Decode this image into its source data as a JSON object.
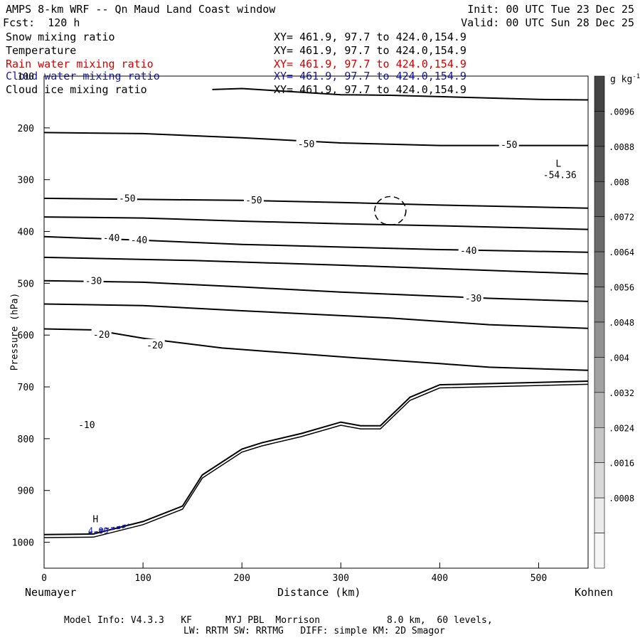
{
  "header": {
    "title": "AMPS 8-km WRF -- Qn Maud Land Coast window",
    "forecast": "Fcst:  120 h",
    "init": "Init: 00 UTC Tue 23 Dec 25",
    "valid": "Valid: 00 UTC Sun 28 Dec 25"
  },
  "fields": [
    {
      "name": "Snow mixing ratio",
      "xy": "XY= 461.9, 97.7 to 424.0,154.9",
      "color": "#000000"
    },
    {
      "name": "Temperature",
      "xy": "XY= 461.9, 97.7 to 424.0,154.9",
      "color": "#000000"
    },
    {
      "name": "Rain water mixing ratio",
      "xy": "XY= 461.9, 97.7 to 424.0,154.9",
      "color": "#d40000"
    },
    {
      "name": "Cloud water mixing ratio",
      "xy": "XY= 461.9, 97.7 to 424.0,154.9",
      "color": "#1a1aa8"
    },
    {
      "name": "Cloud ice mixing ratio",
      "xy": "XY= 461.9, 97.7 to 424.0,154.9",
      "color": "#000000"
    }
  ],
  "footer": {
    "line1": "Model Info: V4.3.3   KF      MYJ PBL  Morrison            8.0 km,  60 levels,",
    "line2": "LW: RRTM SW: RRTMG   DIFF: simple KM: 2D Smagor"
  },
  "chart_data": {
    "type": "contour-cross-section",
    "xlabel": "Distance (km)",
    "ylabel": "Pressure (hPa)",
    "xlim": [
      0,
      550
    ],
    "ylim": [
      1050,
      100
    ],
    "x_ticks": [
      "0",
      "100",
      "200",
      "300",
      "400",
      "500"
    ],
    "y_ticks": [
      "100",
      "200",
      "300",
      "400",
      "500",
      "600",
      "700",
      "800",
      "900",
      "1000"
    ],
    "left_endpoint": "Neumayer",
    "right_endpoint": "Kohnen",
    "colorbar": {
      "unit": "g kg",
      "unit_exp": "-1",
      "labels": [
        ".0096",
        ".0088",
        ".008",
        ".0072",
        ".0064",
        ".0056",
        ".0048",
        ".004",
        ".0032",
        ".0024",
        ".0016",
        ".0008"
      ],
      "fills": [
        "#444444",
        "#4d4d4d",
        "#565656",
        "#606060",
        "#6b6b6b",
        "#777777",
        "#848484",
        "#929292",
        "#a2a2a2",
        "#b3b3b3",
        "#c6c6c6",
        "#d9d9d9",
        "#ebebeb",
        "#f6f6f6"
      ]
    },
    "temperature_contour_labels": [
      {
        "text": "-50",
        "x": 265,
        "p": 232
      },
      {
        "text": "-50",
        "x": 470,
        "p": 233
      },
      {
        "text": "-50",
        "x": 84,
        "p": 337
      },
      {
        "text": "-50",
        "x": 212,
        "p": 340
      },
      {
        "text": "-40",
        "x": 68,
        "p": 413
      },
      {
        "text": "-40",
        "x": 96,
        "p": 417
      },
      {
        "text": "-40",
        "x": 429,
        "p": 438
      },
      {
        "text": "-30",
        "x": 50,
        "p": 496
      },
      {
        "text": "-30",
        "x": 434,
        "p": 530
      },
      {
        "text": "-20",
        "x": 58,
        "p": 600
      },
      {
        "text": "-20",
        "x": 112,
        "p": 620
      },
      {
        "text": "-10",
        "x": 43,
        "p": 774
      }
    ],
    "temperature_contours": [
      [
        [
          170,
          126
        ],
        [
          200,
          124
        ],
        [
          250,
          130
        ],
        [
          300,
          136
        ],
        [
          350,
          137
        ],
        [
          500,
          145
        ],
        [
          550,
          146
        ]
      ],
      [
        [
          0,
          209
        ],
        [
          100,
          211
        ],
        [
          200,
          219
        ],
        [
          300,
          229
        ],
        [
          400,
          234
        ],
        [
          550,
          234
        ]
      ],
      [
        [
          0,
          336
        ],
        [
          100,
          338
        ],
        [
          200,
          340
        ],
        [
          300,
          344
        ],
        [
          400,
          349
        ],
        [
          550,
          355
        ]
      ],
      [
        [
          0,
          372
        ],
        [
          100,
          374
        ],
        [
          200,
          380
        ],
        [
          300,
          385
        ],
        [
          400,
          389
        ],
        [
          550,
          396
        ]
      ],
      [
        [
          0,
          410
        ],
        [
          100,
          417
        ],
        [
          200,
          425
        ],
        [
          300,
          430
        ],
        [
          400,
          435
        ],
        [
          550,
          440
        ]
      ],
      [
        [
          0,
          450
        ],
        [
          150,
          456
        ],
        [
          300,
          465
        ],
        [
          450,
          475
        ],
        [
          550,
          482
        ]
      ],
      [
        [
          0,
          495
        ],
        [
          100,
          498
        ],
        [
          200,
          507
        ],
        [
          300,
          517
        ],
        [
          450,
          529
        ],
        [
          550,
          535
        ]
      ],
      [
        [
          0,
          540
        ],
        [
          100,
          543
        ],
        [
          200,
          553
        ],
        [
          350,
          567
        ],
        [
          450,
          580
        ],
        [
          550,
          587
        ]
      ],
      [
        [
          0,
          588
        ],
        [
          50,
          590
        ],
        [
          100,
          606
        ],
        [
          180,
          625
        ],
        [
          300,
          642
        ],
        [
          400,
          655
        ],
        [
          450,
          662
        ],
        [
          550,
          668
        ]
      ]
    ],
    "pressure_center_low": {
      "label": "L",
      "value": "-54.36",
      "x": 520,
      "p": 275
    },
    "pressure_center_high": {
      "label": "H",
      "value": "4.09",
      "x": 52,
      "p": 975
    },
    "terrain_profile": [
      [
        0,
        985
      ],
      [
        50,
        984
      ],
      [
        100,
        960
      ],
      [
        140,
        930
      ],
      [
        160,
        870
      ],
      [
        200,
        820
      ],
      [
        220,
        808
      ],
      [
        260,
        790
      ],
      [
        300,
        768
      ],
      [
        320,
        775
      ],
      [
        340,
        775
      ],
      [
        370,
        720
      ],
      [
        400,
        696
      ],
      [
        550,
        689
      ]
    ]
  }
}
